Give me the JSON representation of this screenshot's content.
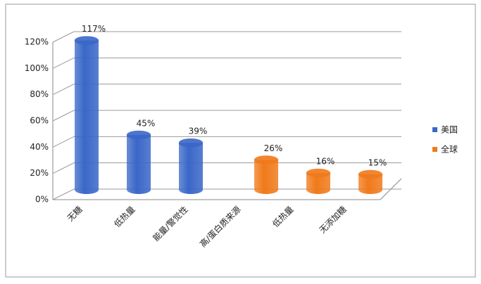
{
  "chart_data": {
    "type": "bar",
    "categories": [
      "无糖",
      "低热量",
      "能量/警觉性",
      "高/蛋白质来源",
      "低热量",
      "无添加糖"
    ],
    "series": [
      {
        "name": "美国",
        "color": "#3a67c8",
        "values": [
          117,
          45,
          39,
          null,
          null,
          null
        ],
        "value_labels": [
          "117%",
          "45%",
          "39%",
          null,
          null,
          null
        ]
      },
      {
        "name": "全球",
        "color": "#f07a1b",
        "values": [
          null,
          null,
          null,
          26,
          16,
          15
        ],
        "value_labels": [
          null,
          null,
          null,
          "26%",
          "16%",
          "15%"
        ]
      }
    ],
    "ylim": [
      0,
      120
    ],
    "yticks": [
      {
        "value": 0,
        "label": "0%"
      },
      {
        "value": 20,
        "label": "20%"
      },
      {
        "value": 40,
        "label": "40%"
      },
      {
        "value": 60,
        "label": "60%"
      },
      {
        "value": 80,
        "label": "80%"
      },
      {
        "value": 100,
        "label": "100%"
      },
      {
        "value": 120,
        "label": "120%"
      }
    ],
    "grid": true,
    "legend": "right"
  }
}
